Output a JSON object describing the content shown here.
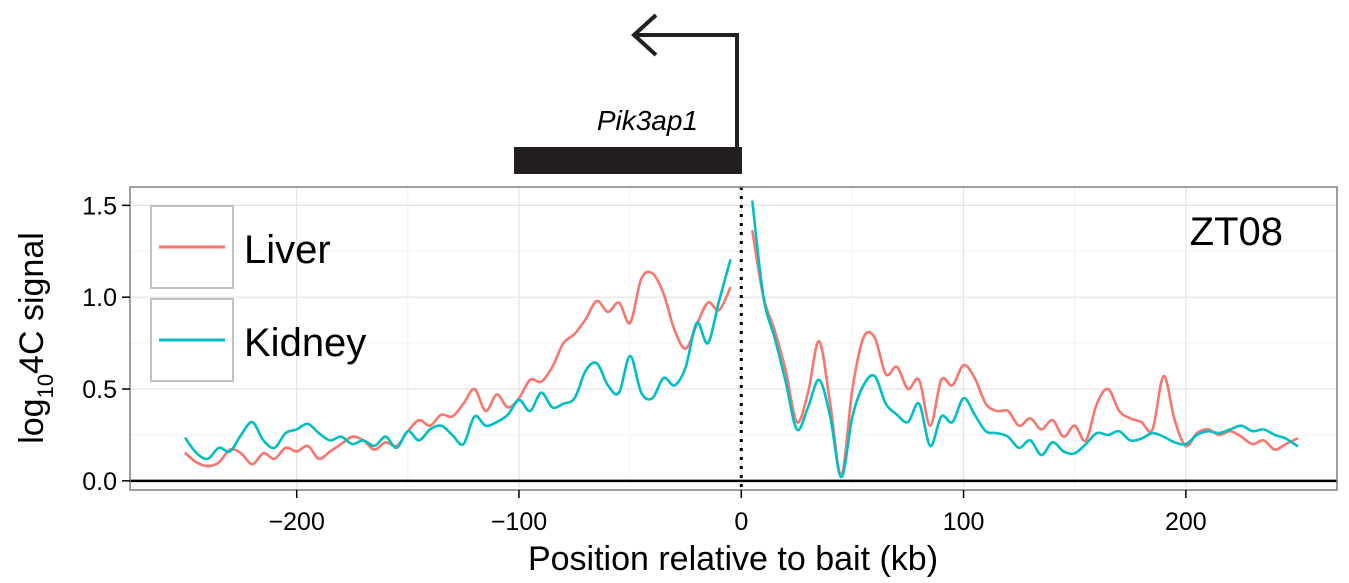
{
  "chart_data": {
    "type": "line",
    "xlabel": "Position relative to bait (kb)",
    "ylabel_main": "log",
    "ylabel_sub": "10",
    "ylabel_rest": "4C signal",
    "annotation": "ZT08",
    "gene": "Pik3ap1",
    "xlim": [
      -275,
      268
    ],
    "ylim": [
      -0.05,
      1.6
    ],
    "xticks": [
      -200,
      -100,
      0,
      100,
      200
    ],
    "xtick_labels": [
      "−200",
      "−100",
      "0",
      "100",
      "200"
    ],
    "yticks": [
      0.0,
      0.5,
      1.0,
      1.5
    ],
    "ytick_labels": [
      "0.0",
      "0.5",
      "1.0",
      "1.5"
    ],
    "grid": true,
    "bait_position": 0,
    "legend_position": "top-left",
    "series": [
      {
        "name": "Liver",
        "color": "#f8766d",
        "segments": [
          {
            "x": [
              -250,
              -245,
              -240,
              -235,
              -230,
              -225,
              -220,
              -215,
              -210,
              -205,
              -200,
              -195,
              -190,
              -185,
              -180,
              -175,
              -170,
              -165,
              -160,
              -155,
              -150,
              -145,
              -140,
              -135,
              -130,
              -125,
              -120,
              -115,
              -110,
              -105,
              -100,
              -95,
              -90,
              -85,
              -80,
              -75,
              -70,
              -65,
              -60,
              -55,
              -50,
              -45,
              -40,
              -35,
              -30,
              -25,
              -20,
              -15,
              -10,
              -5
            ],
            "y": [
              0.15,
              0.1,
              0.08,
              0.1,
              0.17,
              0.15,
              0.09,
              0.15,
              0.12,
              0.18,
              0.16,
              0.19,
              0.12,
              0.16,
              0.2,
              0.24,
              0.22,
              0.17,
              0.21,
              0.19,
              0.27,
              0.33,
              0.3,
              0.36,
              0.35,
              0.42,
              0.5,
              0.38,
              0.47,
              0.4,
              0.45,
              0.55,
              0.54,
              0.62,
              0.75,
              0.8,
              0.88,
              0.98,
              0.92,
              0.97,
              0.86,
              1.1,
              1.13,
              1.02,
              0.82,
              0.72,
              0.85,
              0.97,
              0.93,
              1.05
            ]
          },
          {
            "x": [
              5,
              10,
              15,
              20,
              25,
              30,
              35,
              40,
              45,
              50,
              55,
              60,
              65,
              70,
              75,
              80,
              85,
              90,
              95,
              100,
              105,
              110,
              115,
              120,
              125,
              130,
              135,
              140,
              145,
              150,
              155,
              160,
              165,
              170,
              175,
              180,
              185,
              190,
              195,
              200,
              205,
              210,
              215,
              220,
              225,
              230,
              235,
              240,
              245,
              250
            ],
            "y": [
              1.36,
              1.0,
              0.82,
              0.6,
              0.32,
              0.48,
              0.76,
              0.42,
              0.03,
              0.5,
              0.78,
              0.78,
              0.58,
              0.62,
              0.5,
              0.55,
              0.3,
              0.55,
              0.52,
              0.63,
              0.56,
              0.42,
              0.38,
              0.38,
              0.3,
              0.34,
              0.28,
              0.33,
              0.24,
              0.3,
              0.22,
              0.42,
              0.5,
              0.38,
              0.34,
              0.32,
              0.28,
              0.57,
              0.33,
              0.19,
              0.26,
              0.28,
              0.25,
              0.27,
              0.24,
              0.2,
              0.22,
              0.17,
              0.2,
              0.23
            ]
          }
        ]
      },
      {
        "name": "Kidney",
        "color": "#00bfc4",
        "segments": [
          {
            "x": [
              -250,
              -245,
              -240,
              -235,
              -230,
              -225,
              -220,
              -215,
              -210,
              -205,
              -200,
              -195,
              -190,
              -185,
              -180,
              -175,
              -170,
              -165,
              -160,
              -155,
              -150,
              -145,
              -140,
              -135,
              -130,
              -125,
              -120,
              -115,
              -110,
              -105,
              -100,
              -95,
              -90,
              -85,
              -80,
              -75,
              -70,
              -65,
              -60,
              -55,
              -50,
              -45,
              -40,
              -35,
              -30,
              -25,
              -20,
              -15,
              -10,
              -5
            ],
            "y": [
              0.23,
              0.15,
              0.12,
              0.18,
              0.16,
              0.25,
              0.32,
              0.22,
              0.18,
              0.26,
              0.28,
              0.31,
              0.26,
              0.22,
              0.24,
              0.2,
              0.22,
              0.19,
              0.24,
              0.18,
              0.27,
              0.22,
              0.28,
              0.3,
              0.25,
              0.2,
              0.35,
              0.3,
              0.32,
              0.36,
              0.44,
              0.38,
              0.48,
              0.4,
              0.42,
              0.45,
              0.6,
              0.64,
              0.52,
              0.48,
              0.68,
              0.48,
              0.45,
              0.56,
              0.52,
              0.62,
              0.86,
              0.75,
              0.98,
              1.2
            ]
          },
          {
            "x": [
              5,
              10,
              15,
              20,
              25,
              30,
              35,
              40,
              45,
              50,
              55,
              60,
              65,
              70,
              75,
              80,
              85,
              90,
              95,
              100,
              105,
              110,
              115,
              120,
              125,
              130,
              135,
              140,
              145,
              150,
              155,
              160,
              165,
              170,
              175,
              180,
              185,
              190,
              195,
              200,
              205,
              210,
              215,
              220,
              225,
              230,
              235,
              240,
              245,
              250
            ],
            "y": [
              1.52,
              1.0,
              0.78,
              0.54,
              0.28,
              0.4,
              0.55,
              0.35,
              0.02,
              0.35,
              0.52,
              0.57,
              0.42,
              0.36,
              0.32,
              0.42,
              0.19,
              0.35,
              0.32,
              0.45,
              0.36,
              0.27,
              0.26,
              0.24,
              0.18,
              0.22,
              0.14,
              0.21,
              0.16,
              0.15,
              0.2,
              0.26,
              0.25,
              0.27,
              0.22,
              0.23,
              0.26,
              0.24,
              0.21,
              0.2,
              0.25,
              0.27,
              0.26,
              0.28,
              0.3,
              0.27,
              0.28,
              0.25,
              0.23,
              0.19
            ]
          }
        ]
      }
    ]
  }
}
